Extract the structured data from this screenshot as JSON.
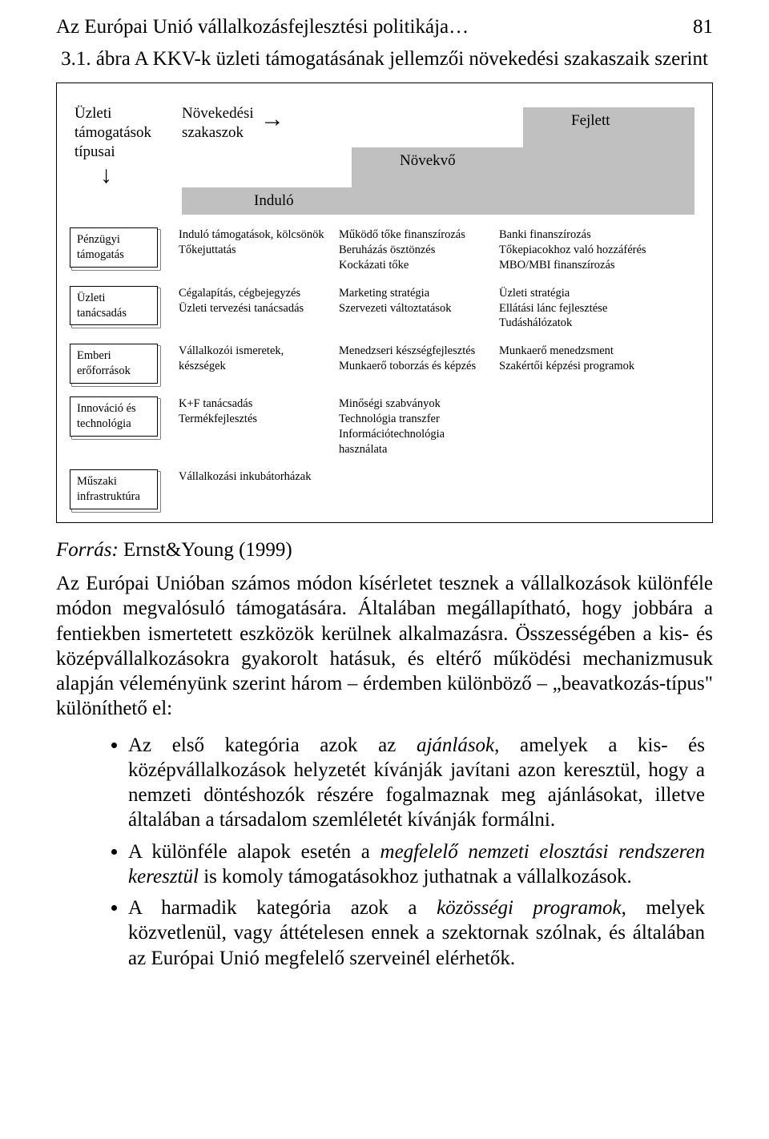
{
  "page": {
    "running_title": "Az Európai Unió vállalkozásfejlesztési politikája…",
    "page_number": "81",
    "caption": "3.1. ábra A KKV-k üzleti támogatásának jellemzői növekedési szakaszaik szerint"
  },
  "figure": {
    "types_label_line1": "Üzleti",
    "types_label_line2": "támogatások",
    "types_label_line3": "típusai",
    "phases_label_line1": "Növekedési",
    "phases_label_line2": "szakaszok",
    "arrow_right": "→",
    "arrow_down": "↓",
    "stairs": {
      "stage1": "Induló",
      "stage2": "Növekvő",
      "stage3": "Fejlett",
      "fill_color": "#c0c0c0"
    },
    "rows": [
      {
        "label_line1": "Pénzügyi",
        "label_line2": "támogatás",
        "c1": "Induló támogatások, kölcsönök\nTőkejuttatás",
        "c2": "Működő tőke finanszírozás\nBeruházás ösztönzés\nKockázati tőke",
        "c3": "Banki finanszírozás\nTőkepiacokhoz való hozzáférés\nMBO/MBI finanszírozás"
      },
      {
        "label_line1": "Üzleti",
        "label_line2": "tanácsadás",
        "c1": "Cégalapítás, cégbejegyzés\nÜzleti tervezési tanácsadás",
        "c2": "Marketing stratégia\nSzervezeti változtatások",
        "c3": "Üzleti stratégia\nEllátási lánc fejlesztése\nTudáshálózatok"
      },
      {
        "label_line1": "Emberi",
        "label_line2": "erőforrások",
        "c1": "Vállalkozói ismeretek, készségek",
        "c2": "Menedzseri készségfejlesztés\nMunkaerő toborzás és képzés",
        "c3": "Munkaerő menedzsment\nSzakértői képzési programok"
      },
      {
        "label_line1": "Innováció és",
        "label_line2": "technológia",
        "c1": "K+F tanácsadás\nTermékfejlesztés",
        "c2": "Minőségi szabványok\nTechnológia transzfer\nInformációtechnológia használata",
        "c3": ""
      },
      {
        "label_line1": "Műszaki",
        "label_line2": "infrastruktúra",
        "c1": "Vállalkozási inkubátorházak",
        "c2": "",
        "c3": ""
      }
    ]
  },
  "source": {
    "label": "Forrás:",
    "text": " Ernst&Young (1999)"
  },
  "body": {
    "para": "Az Európai Unióban számos módon kísérletet tesznek a vállalkozások különféle módon megvalósuló támogatására. Általában megállapítható, hogy jobbára a fentiekben ismertetett eszközök kerülnek alkalmazásra. Összességében a kis- és középvállalkozásokra gyakorolt hatásuk, és eltérő működési mechanizmusuk alapján véleményünk szerint három – érdemben különböző – „beavatkozás-típus\" különíthető el:"
  },
  "bullets": [
    {
      "pre": "Az első kategória azok az ",
      "em": "ajánlások",
      "post": ", amelyek a kis- és középvállalkozások helyzetét kívánják javítani azon keresztül, hogy a nemzeti döntéshozók részére fogalmaznak meg ajánlásokat, illetve általában a társadalom szemléletét kívánják formálni."
    },
    {
      "pre": "A különféle alapok esetén a ",
      "em": "megfelelő nemzeti elosztási rendszeren keresztül",
      "post": " is komoly támogatásokhoz juthatnak a vállalkozások."
    },
    {
      "pre": "A harmadik kategória azok a ",
      "em": "közösségi programok",
      "post": ", melyek közvetlenül, vagy áttételesen ennek a szektornak szólnak, és általában az Európai Unió megfelelő szerveinél elérhetők."
    }
  ]
}
